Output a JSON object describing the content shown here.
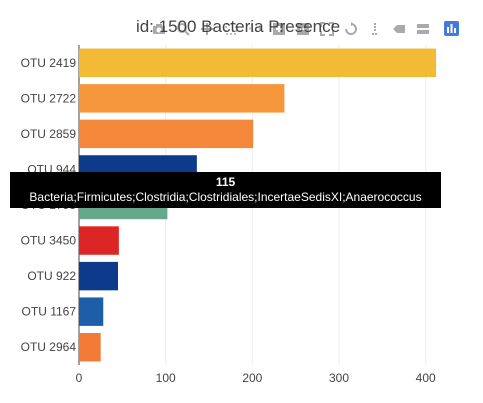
{
  "chart_data": {
    "type": "bar",
    "orientation": "horizontal",
    "title": "id: 1500 Bacteria Presence",
    "xlabel": "",
    "ylabel": "",
    "xlim": [
      0,
      420
    ],
    "xticks": [
      0,
      100,
      200,
      300,
      400
    ],
    "grid": true,
    "categories": [
      "OTU 2419",
      "OTU 2722",
      "OTU 2859",
      "OTU 944",
      "OTU 1795",
      "OTU 3450",
      "OTU 922",
      "OTU 1167",
      "OTU 2964"
    ],
    "values": [
      412,
      237,
      201,
      136,
      102,
      46,
      45,
      28,
      25
    ],
    "colors": [
      "#F3BB35",
      "#F5963B",
      "#F5873B",
      "#0E3A8C",
      "#66A88B",
      "#DC2626",
      "#0E3A8C",
      "#1E5DA8",
      "#F47A38"
    ],
    "hover": {
      "value": "115",
      "text": "Bacteria;Firmicutes;Clostridia;Clostridiales;IncertaeSedisXI;Anaerococcus"
    }
  },
  "modebar": {
    "buttons": [
      "camera-icon",
      "zoom-icon",
      "pan-icon",
      "box-select-icon",
      "lasso-icon",
      "zoom-in-icon",
      "zoom-out-icon",
      "autoscale-icon",
      "reset-axes-icon",
      "spike-lines-icon",
      "hover-closest-icon",
      "hover-compare-icon"
    ],
    "logo": "plotly-logo-icon"
  }
}
